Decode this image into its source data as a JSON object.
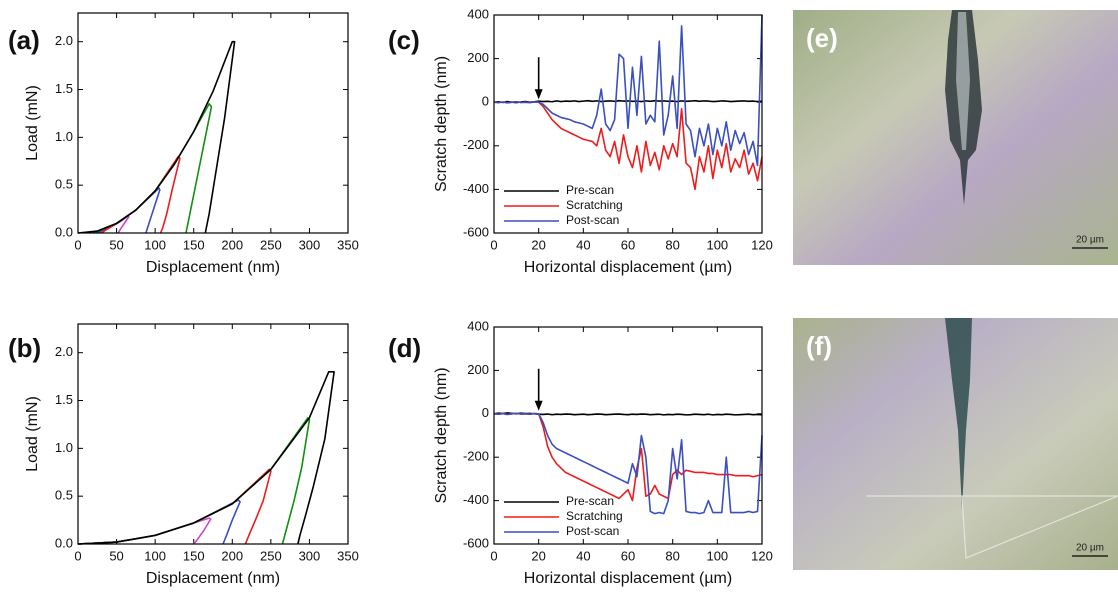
{
  "chart_data": [
    {
      "type": "line",
      "panel_label": "(a)",
      "xlabel": "Displacement (nm)",
      "ylabel": "Load (mN)",
      "xlim": [
        0,
        350
      ],
      "ylim": [
        0,
        2.3
      ],
      "xticks": [
        0,
        50,
        100,
        150,
        200,
        250,
        300,
        350
      ],
      "yticks": [
        {
          "value": 0,
          "label": "0.0"
        },
        0.5,
        {
          "value": 1,
          "label": "1.0"
        },
        1.5,
        {
          "value": 2,
          "label": "2.0"
        }
      ],
      "series": [
        {
          "color": "#cc44cc",
          "x": [
            20,
            40,
            55,
            65,
            66,
            60,
            55,
            52
          ],
          "values": [
            0,
            0.05,
            0.12,
            0.18,
            0.17,
            0.1,
            0.04,
            0
          ]
        },
        {
          "color": "#3a4fc0",
          "x": [
            25,
            50,
            75,
            105,
            106,
            98,
            92,
            88
          ],
          "values": [
            0,
            0.1,
            0.24,
            0.47,
            0.45,
            0.25,
            0.1,
            0
          ]
        },
        {
          "color": "#ee1c1c",
          "x": [
            30,
            50,
            75,
            100,
            130,
            132,
            122,
            115,
            110,
            107
          ],
          "values": [
            0,
            0.1,
            0.24,
            0.44,
            0.8,
            0.78,
            0.45,
            0.2,
            0.06,
            0
          ]
        },
        {
          "color": "#109010",
          "x": [
            20,
            50,
            75,
            100,
            125,
            150,
            170,
            173,
            160,
            150,
            143,
            140
          ],
          "values": [
            0,
            0.1,
            0.24,
            0.44,
            0.72,
            1.06,
            1.35,
            1.32,
            0.8,
            0.4,
            0.12,
            0
          ]
        },
        {
          "color": "#000000",
          "x": [
            0,
            25,
            50,
            75,
            100,
            125,
            150,
            175,
            200,
            203,
            190,
            178,
            170,
            165
          ],
          "values": [
            0,
            0.02,
            0.1,
            0.24,
            0.44,
            0.72,
            1.06,
            1.48,
            2.0,
            2.0,
            1.2,
            0.6,
            0.2,
            0
          ]
        }
      ]
    },
    {
      "type": "line",
      "panel_label": "(b)",
      "xlabel": "Displacement (nm)",
      "ylabel": "Load (mN)",
      "xlim": [
        0,
        350
      ],
      "ylim": [
        0,
        2.3
      ],
      "xticks": [
        0,
        50,
        100,
        150,
        200,
        250,
        300,
        350
      ],
      "yticks": [
        {
          "value": 0,
          "label": "0.0"
        },
        0.5,
        {
          "value": 1,
          "label": "1.0"
        },
        1.5,
        {
          "value": 2,
          "label": "2.0"
        }
      ],
      "series": [
        {
          "color": "#cc44cc",
          "x": [
            0,
            50,
            100,
            150,
            170,
            172,
            163,
            155,
            150
          ],
          "values": [
            0,
            0.02,
            0.09,
            0.22,
            0.27,
            0.26,
            0.14,
            0.05,
            0
          ]
        },
        {
          "color": "#3a4fc0",
          "x": [
            0,
            50,
            100,
            150,
            208,
            210,
            200,
            193,
            188
          ],
          "values": [
            0,
            0.02,
            0.09,
            0.22,
            0.46,
            0.44,
            0.25,
            0.1,
            0
          ]
        },
        {
          "color": "#ee1c1c",
          "x": [
            0,
            50,
            100,
            150,
            200,
            248,
            250,
            240,
            230,
            222,
            217
          ],
          "values": [
            0,
            0.02,
            0.09,
            0.22,
            0.42,
            0.78,
            0.76,
            0.45,
            0.25,
            0.1,
            0
          ]
        },
        {
          "color": "#109010",
          "x": [
            0,
            50,
            100,
            150,
            200,
            250,
            298,
            300,
            290,
            280,
            270,
            265
          ],
          "values": [
            0,
            0.02,
            0.09,
            0.22,
            0.42,
            0.78,
            1.32,
            1.3,
            0.8,
            0.45,
            0.15,
            0
          ]
        },
        {
          "color": "#000000",
          "x": [
            0,
            50,
            100,
            150,
            200,
            250,
            300,
            325,
            332,
            320,
            305,
            295,
            288,
            285
          ],
          "values": [
            0,
            0.02,
            0.09,
            0.22,
            0.42,
            0.78,
            1.32,
            1.8,
            1.8,
            1.1,
            0.6,
            0.3,
            0.1,
            0
          ]
        }
      ]
    },
    {
      "type": "line",
      "panel_label": "(c)",
      "xlabel": "Horizontal displacement (µm)",
      "ylabel": "Scratch depth (nm)",
      "xlim": [
        0,
        120
      ],
      "ylim": [
        -600,
        400
      ],
      "xticks": [
        0,
        20,
        40,
        60,
        80,
        100,
        120
      ],
      "yticks": [
        -600,
        -400,
        -200,
        0,
        200,
        400
      ],
      "legend": "lower left",
      "arrow": {
        "x": 20,
        "y": 0
      },
      "x": [
        0,
        2,
        4,
        6,
        8,
        10,
        12,
        14,
        16,
        18,
        20,
        22,
        24,
        26,
        28,
        30,
        32,
        34,
        36,
        38,
        40,
        42,
        44,
        46,
        48,
        50,
        52,
        54,
        56,
        58,
        60,
        62,
        64,
        66,
        68,
        70,
        72,
        74,
        76,
        78,
        80,
        82,
        84,
        86,
        88,
        90,
        92,
        94,
        96,
        98,
        100,
        102,
        104,
        106,
        108,
        110,
        112,
        114,
        116,
        118,
        120
      ],
      "series": [
        {
          "name": "Pre-scan",
          "color": "#000000",
          "values": [
            0,
            2,
            -1,
            3,
            0,
            -2,
            1,
            3,
            0,
            2,
            5,
            3,
            4,
            2,
            6,
            3,
            5,
            4,
            6,
            3,
            5,
            7,
            4,
            6,
            3,
            5,
            6,
            4,
            7,
            5,
            6,
            4,
            5,
            3,
            6,
            4,
            7,
            5,
            6,
            4,
            5,
            3,
            6,
            4,
            5,
            7,
            4,
            6,
            5,
            3,
            4,
            6,
            5,
            3,
            4,
            5,
            6,
            4,
            5,
            3,
            5
          ]
        },
        {
          "name": "Scratching",
          "color": "#ee1c1c",
          "values": [
            0,
            -2,
            1,
            -3,
            0,
            2,
            -1,
            0,
            -2,
            1,
            0,
            -20,
            -50,
            -80,
            -100,
            -120,
            -130,
            -140,
            -150,
            -160,
            -170,
            -175,
            -180,
            -200,
            -120,
            -220,
            -250,
            -180,
            -280,
            -150,
            -250,
            -300,
            -200,
            -320,
            -180,
            -290,
            -230,
            -310,
            -200,
            -260,
            -190,
            -250,
            -30,
            -280,
            -300,
            -400,
            -250,
            -320,
            -200,
            -350,
            -220,
            -300,
            -190,
            -320,
            -260,
            -300,
            -220,
            -330,
            -280,
            -360,
            -250
          ]
        },
        {
          "name": "Post-scan",
          "color": "#3a4fc0",
          "values": [
            0,
            -2,
            1,
            -3,
            0,
            2,
            -1,
            0,
            -2,
            1,
            0,
            -10,
            -30,
            -50,
            -60,
            -70,
            -75,
            -80,
            -90,
            -95,
            -100,
            -110,
            -120,
            -60,
            60,
            -100,
            -130,
            -80,
            220,
            200,
            -120,
            160,
            -60,
            210,
            -100,
            -60,
            -90,
            280,
            -150,
            -60,
            120,
            -120,
            350,
            -100,
            -130,
            -250,
            -120,
            -200,
            -100,
            -240,
            -120,
            -200,
            -90,
            -220,
            -130,
            -190,
            -140,
            -240,
            -180,
            -290,
            400
          ]
        }
      ]
    },
    {
      "type": "line",
      "panel_label": "(d)",
      "xlabel": "Horizontal displacement (µm)",
      "ylabel": "Scratch depth (nm)",
      "xlim": [
        0,
        120
      ],
      "ylim": [
        -600,
        400
      ],
      "xticks": [
        0,
        20,
        40,
        60,
        80,
        100,
        120
      ],
      "yticks": [
        -600,
        -400,
        -200,
        0,
        200,
        400
      ],
      "legend": "lower left",
      "arrow": {
        "x": 20,
        "y": 0
      },
      "x": [
        0,
        2,
        4,
        6,
        8,
        10,
        12,
        14,
        16,
        18,
        20,
        22,
        24,
        26,
        28,
        30,
        32,
        34,
        36,
        38,
        40,
        42,
        44,
        46,
        48,
        50,
        52,
        54,
        56,
        58,
        60,
        62,
        64,
        66,
        68,
        70,
        72,
        74,
        76,
        78,
        80,
        82,
        84,
        86,
        88,
        90,
        92,
        94,
        96,
        98,
        100,
        102,
        104,
        106,
        108,
        110,
        112,
        114,
        116,
        118,
        120
      ],
      "series": [
        {
          "name": "Pre-scan",
          "color": "#000000",
          "values": [
            0,
            3,
            1,
            4,
            2,
            0,
            3,
            1,
            2,
            0,
            -2,
            -3,
            -1,
            -4,
            -2,
            -3,
            -1,
            -2,
            -4,
            -3,
            -2,
            -4,
            -3,
            -1,
            -2,
            -4,
            -3,
            -2,
            -1,
            -3,
            -4,
            -2,
            -3,
            -1,
            -2,
            -4,
            -3,
            -2,
            -5,
            -3,
            -4,
            -2,
            -3,
            -5,
            -4,
            -2,
            -3,
            -4,
            -2,
            -5,
            -3,
            -4,
            -2,
            -3,
            -5,
            -4,
            -3,
            -2,
            -4,
            -3,
            -5
          ]
        },
        {
          "name": "Scratching",
          "color": "#ee1c1c",
          "values": [
            0,
            -2,
            1,
            -3,
            0,
            2,
            -1,
            0,
            -2,
            1,
            0,
            -60,
            -150,
            -200,
            -230,
            -250,
            -270,
            -280,
            -290,
            -300,
            -310,
            -320,
            -330,
            -340,
            -350,
            -360,
            -370,
            -380,
            -390,
            -370,
            -350,
            -400,
            -250,
            -160,
            -380,
            -370,
            -330,
            -370,
            -380,
            -390,
            -280,
            -260,
            -280,
            -260,
            -265,
            -270,
            -270,
            -270,
            -275,
            -275,
            -280,
            -280,
            -280,
            -280,
            -285,
            -285,
            -285,
            -285,
            -290,
            -285,
            -280
          ]
        },
        {
          "name": "Post-scan",
          "color": "#3a4fc0",
          "values": [
            0,
            -2,
            1,
            -3,
            0,
            2,
            -1,
            0,
            -2,
            1,
            0,
            -40,
            -100,
            -140,
            -160,
            -170,
            -180,
            -190,
            -200,
            -210,
            -220,
            -230,
            -240,
            -250,
            -260,
            -270,
            -280,
            -290,
            -300,
            -310,
            -320,
            -230,
            -290,
            -100,
            -200,
            -450,
            -460,
            -455,
            -460,
            -400,
            -160,
            -300,
            -120,
            -450,
            -455,
            -455,
            -460,
            -455,
            -400,
            -455,
            -455,
            -455,
            -200,
            -455,
            -455,
            -455,
            -455,
            -450,
            -455,
            -450,
            -100
          ]
        }
      ]
    }
  ],
  "images": [
    {
      "label": "(e)",
      "scale_bar": "20 µm"
    },
    {
      "label": "(f)",
      "scale_bar": "20 µm"
    }
  ]
}
